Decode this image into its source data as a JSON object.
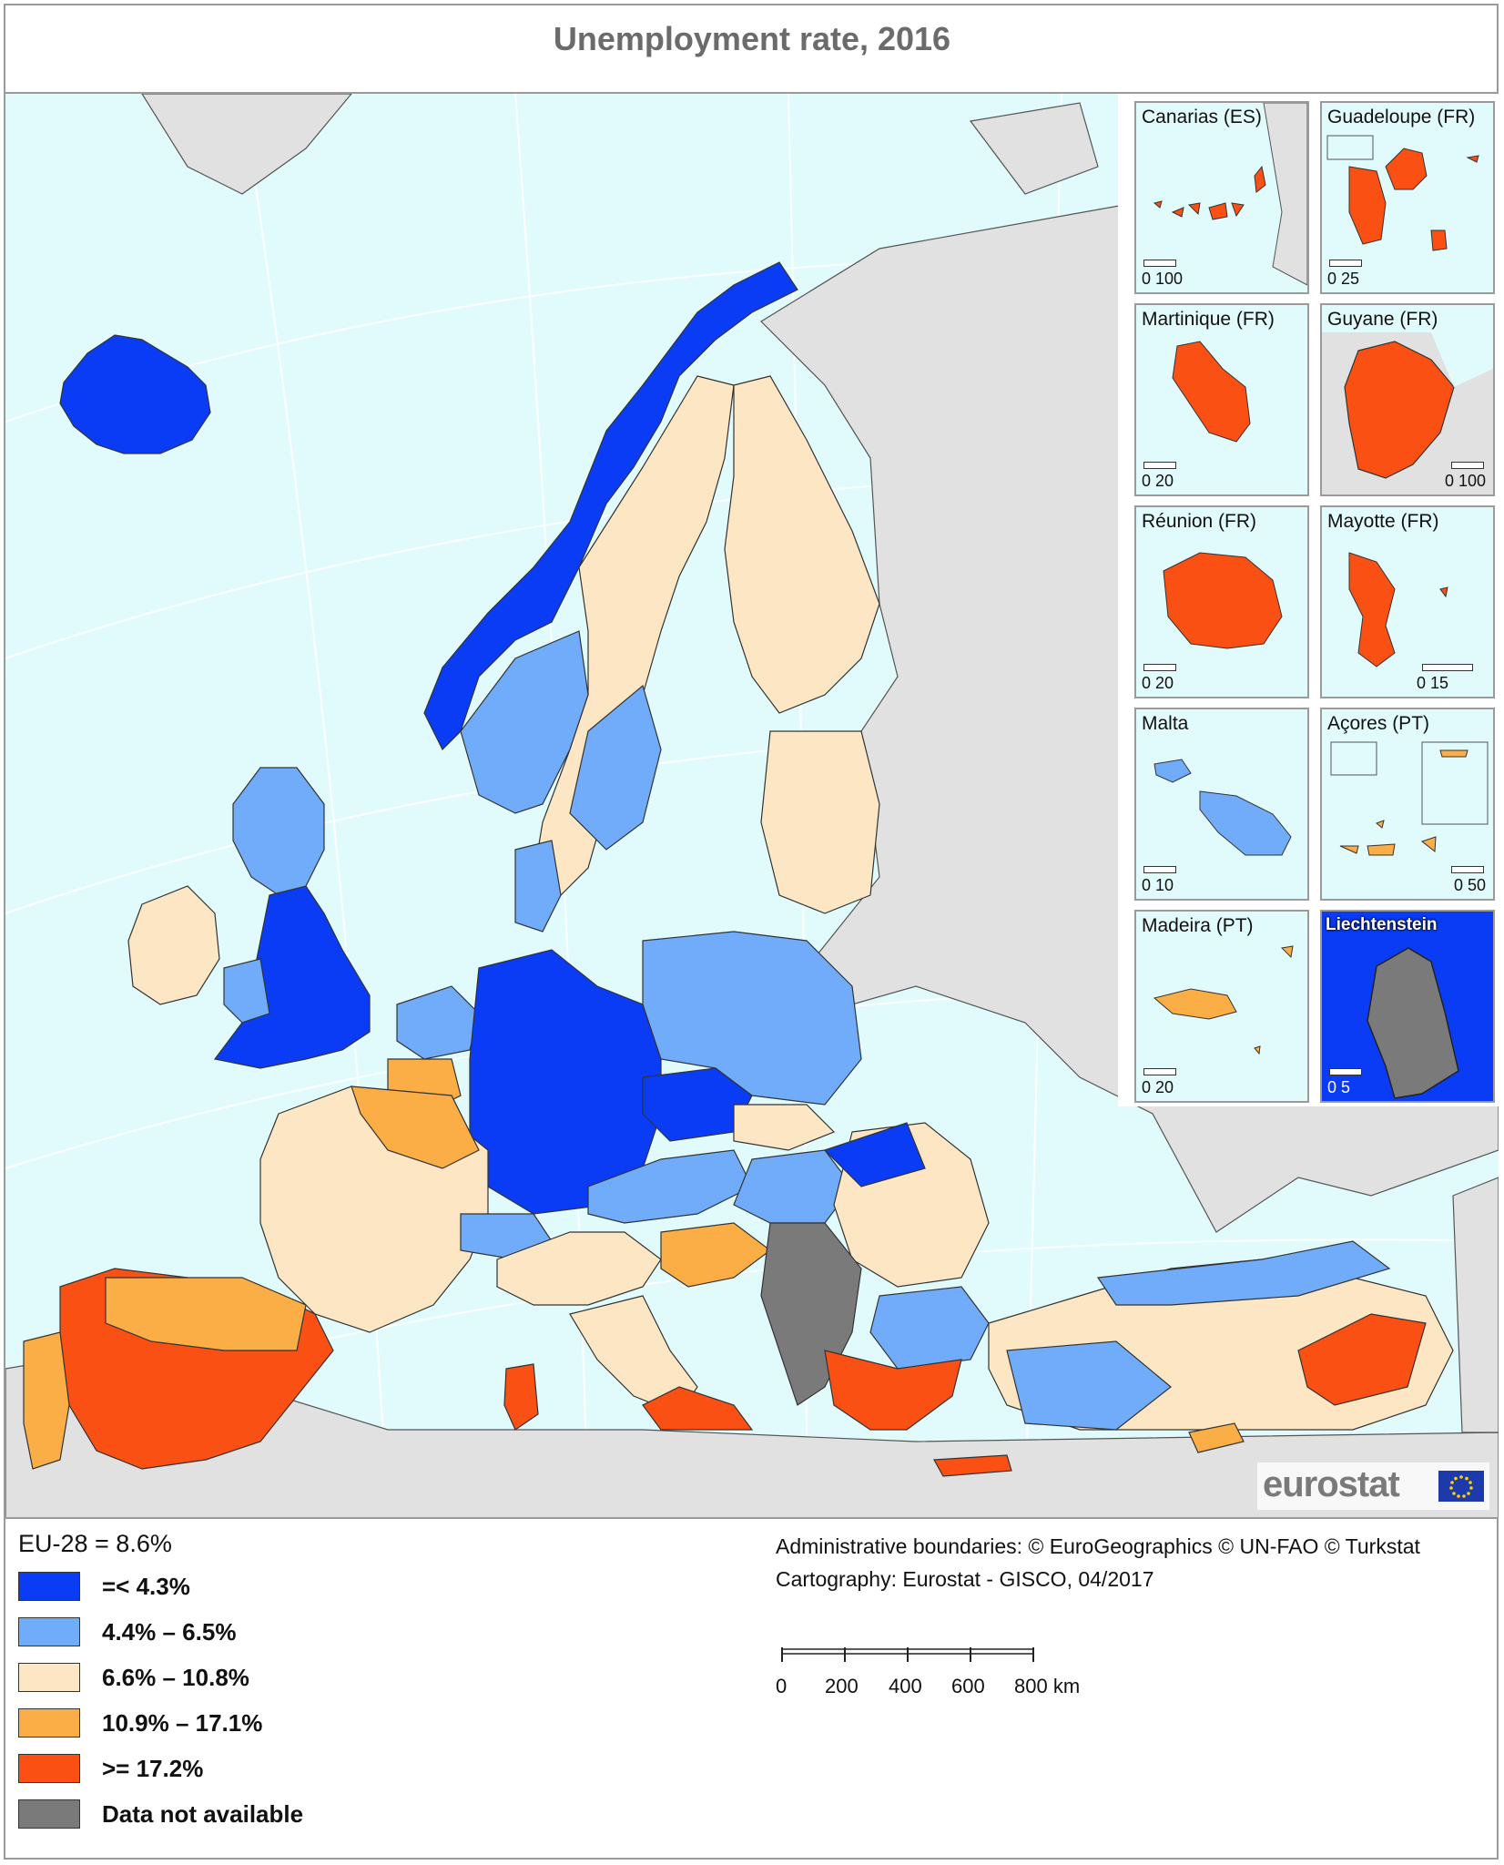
{
  "title": "Unemployment rate, 2016",
  "colors": {
    "sea": "#e1fbfc",
    "non_eu_land": "#e1e1e1",
    "le_4_3": "#0a3cf5",
    "r4_4_6_5": "#70acfa",
    "r6_6_10_8": "#fde6c3",
    "r10_9_17_1": "#fbad46",
    "ge_17_2": "#fa5013",
    "na": "#7a7a7a"
  },
  "insets": [
    {
      "label": "Canarias (ES)",
      "scale": "0  100",
      "class": "ge_17_2"
    },
    {
      "label": "Guadeloupe (FR)",
      "scale": "0  25",
      "class": "ge_17_2"
    },
    {
      "label": "Martinique (FR)",
      "scale": "0    20",
      "class": "ge_17_2"
    },
    {
      "label": "Guyane (FR)",
      "scale": "0  100",
      "class": "ge_17_2"
    },
    {
      "label": "Réunion (FR)",
      "scale": "0    20",
      "class": "ge_17_2"
    },
    {
      "label": "Mayotte (FR)",
      "scale": "0       15",
      "class": "ge_17_2"
    },
    {
      "label": "Malta",
      "scale": "0    10",
      "class": "r4_4_6_5"
    },
    {
      "label": "Açores (PT)",
      "scale": "0  50",
      "class": "r10_9_17_1"
    },
    {
      "label": "Madeira (PT)",
      "scale": "0    20",
      "class": "r10_9_17_1"
    },
    {
      "label": "Liechtenstein",
      "scale": "0    5",
      "class": "na"
    }
  ],
  "legend": {
    "title": "EU-28 = 8.6%",
    "items": [
      {
        "label": "=< 4.3%",
        "color": "#0a3cf5"
      },
      {
        "label": "4.4% – 6.5%",
        "color": "#70acfa"
      },
      {
        "label": "6.6% – 10.8%",
        "color": "#fde6c3"
      },
      {
        "label": "10.9% – 17.1%",
        "color": "#fbad46"
      },
      {
        "label": ">= 17.2%",
        "color": "#fa5013"
      },
      {
        "label": "Data not available",
        "color": "#7a7a7a"
      }
    ]
  },
  "credits": {
    "line1": "Administrative boundaries: © EuroGeographics © UN-FAO © Turkstat",
    "line2": "Cartography: Eurostat - GISCO, 04/2017"
  },
  "scalebar": {
    "ticks": [
      "0",
      "200",
      "400",
      "600",
      "800 km"
    ]
  },
  "logo": {
    "text": "eurostat"
  }
}
